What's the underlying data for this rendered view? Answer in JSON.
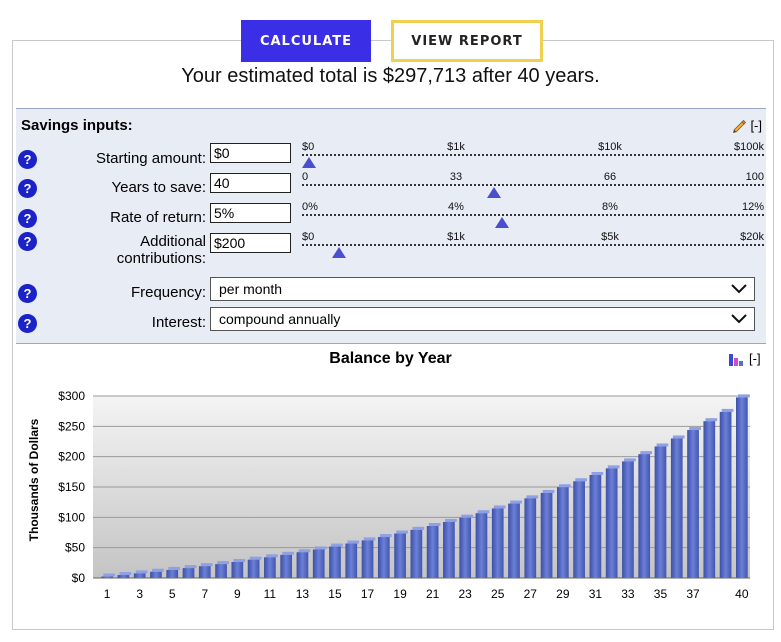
{
  "buttons": {
    "calculate": "CALCULATE",
    "report": "VIEW REPORT"
  },
  "summary": "Your estimated total is $297,713 after 40 years.",
  "inputs": {
    "title": "Savings inputs:",
    "collapse": "[-]",
    "help": "?",
    "starting_amount": {
      "label": "Starting amount:",
      "value": "$0",
      "ticks": [
        "$0",
        "$1k",
        "$10k",
        "$100k"
      ],
      "slider_fraction": 0.0
    },
    "years": {
      "label": "Years to save:",
      "value": "40",
      "ticks": [
        "0",
        "33",
        "66",
        "100"
      ],
      "slider_fraction": 0.4
    },
    "rate": {
      "label": "Rate of return:",
      "value": "5%",
      "ticks": [
        "0%",
        "4%",
        "8%",
        "12%"
      ],
      "slider_fraction": 0.417
    },
    "contributions": {
      "label_line1": "Additional",
      "label_line2": "contributions:",
      "value": "$200",
      "ticks": [
        "$0",
        "$1k",
        "$5k",
        "$20k"
      ],
      "slider_fraction": 0.065
    },
    "frequency": {
      "label": "Frequency:",
      "value": "per month",
      "caret": "⌄"
    },
    "interest": {
      "label": "Interest:",
      "value": "compound annually",
      "caret": "⌄"
    }
  },
  "chart_header": {
    "title": "Balance by Year",
    "collapse": "[-]"
  },
  "chart_data": {
    "type": "bar",
    "title": "Balance by Year",
    "xlabel": "",
    "ylabel": "Thousands of Dollars",
    "ylim": [
      0,
      300
    ],
    "yticks": [
      "$0",
      "$50",
      "$100",
      "$150",
      "$200",
      "$250",
      "$300"
    ],
    "xtick_labels": [
      "1",
      "3",
      "5",
      "7",
      "9",
      "11",
      "13",
      "15",
      "17",
      "19",
      "21",
      "23",
      "25",
      "27",
      "29",
      "31",
      "33",
      "35",
      "37",
      "40"
    ],
    "categories": [
      1,
      2,
      3,
      4,
      5,
      6,
      7,
      8,
      9,
      10,
      11,
      12,
      13,
      14,
      15,
      16,
      17,
      18,
      19,
      20,
      21,
      22,
      23,
      24,
      25,
      26,
      27,
      28,
      29,
      30,
      31,
      32,
      33,
      34,
      35,
      36,
      37,
      38,
      39,
      40
    ],
    "values": [
      2.4,
      4.9,
      7.6,
      10.3,
      13.3,
      16.3,
      19.5,
      22.9,
      26.4,
      30.2,
      34.1,
      38.2,
      42.5,
      47.0,
      51.8,
      56.8,
      62.0,
      67.5,
      73.3,
      79.4,
      85.7,
      92.4,
      99.5,
      106.8,
      114.6,
      122.7,
      131.3,
      140.2,
      149.6,
      159.5,
      169.8,
      180.7,
      192.2,
      204.2,
      216.8,
      230.0,
      243.9,
      258.5,
      273.8,
      297.7
    ],
    "color": "#5a6fc4"
  }
}
